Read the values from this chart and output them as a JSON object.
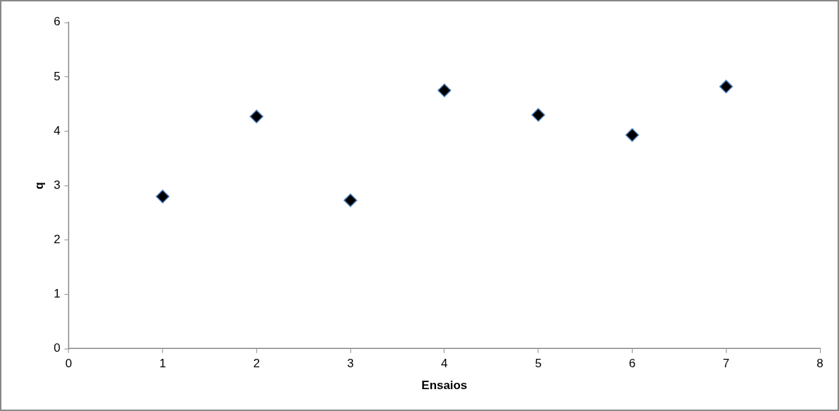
{
  "chart_data": {
    "type": "scatter",
    "xlabel": "Ensaios",
    "ylabel": "q",
    "x": [
      1,
      2,
      3,
      4,
      5,
      6,
      7
    ],
    "series": [
      {
        "color": "#000000",
        "values": [
          2.8,
          4.27,
          2.73,
          4.75,
          4.3,
          3.93,
          4.82
        ]
      }
    ],
    "xlim": [
      0,
      8
    ],
    "xticks": [
      0,
      1,
      2,
      3,
      4,
      5,
      6,
      7,
      8
    ],
    "ylim": [
      0,
      6
    ],
    "yticks": [
      0,
      1,
      2,
      3,
      4,
      5,
      6
    ],
    "grid": false,
    "legend": false,
    "marker": "diamond"
  }
}
